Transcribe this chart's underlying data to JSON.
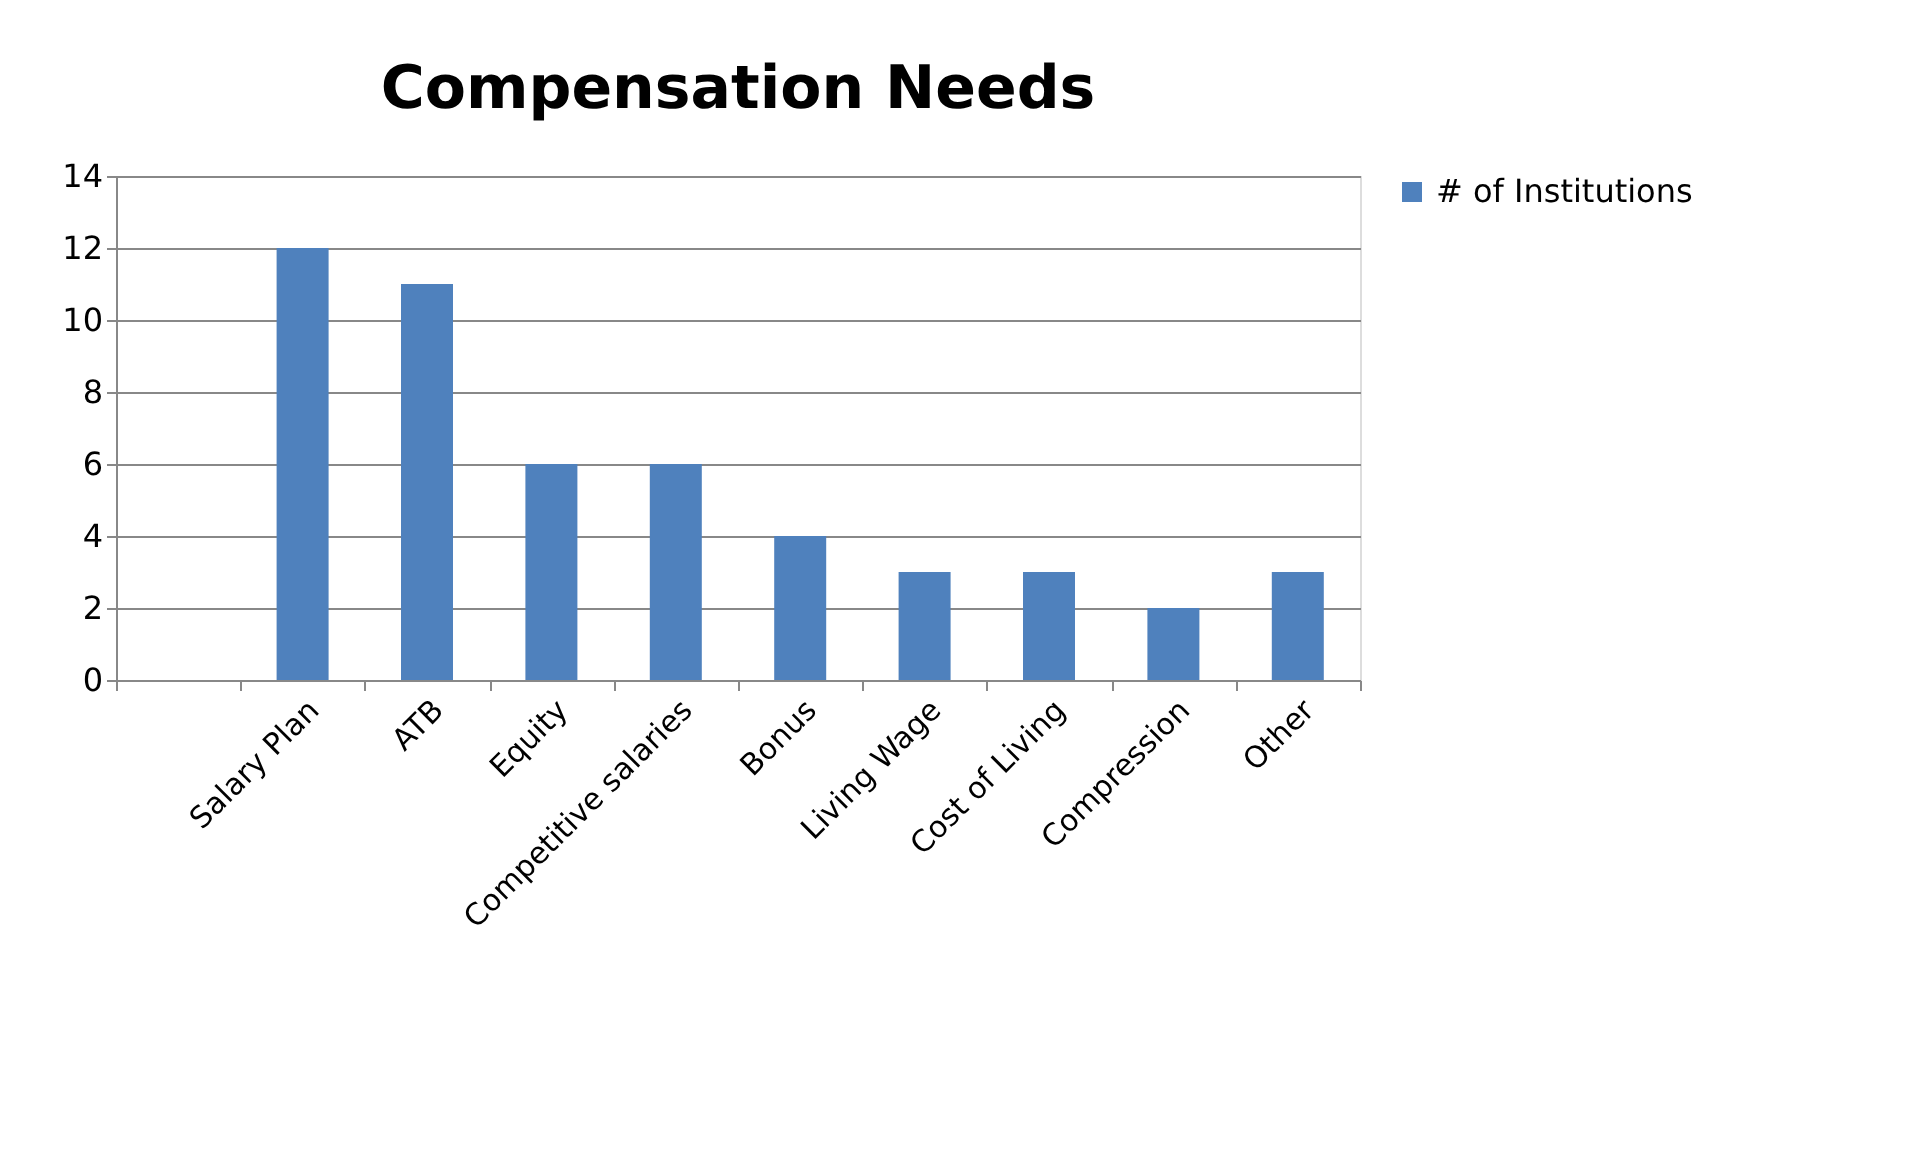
{
  "chart_data": {
    "type": "bar",
    "title": "Compensation Needs",
    "categories": [
      null,
      "Salary Plan",
      "ATB",
      "Equity",
      "Competitive salaries",
      "Bonus",
      "Living Wage",
      "Cost of Living",
      "Compression",
      "Other"
    ],
    "series": [
      {
        "name": "# of Institutions",
        "color": "#4f81bd",
        "values": [
          null,
          12,
          11,
          6,
          6,
          4,
          3,
          3,
          2,
          3
        ]
      }
    ],
    "ylim": [
      0,
      14
    ],
    "yticks": [
      0,
      2,
      4,
      6,
      8,
      10,
      12,
      14
    ],
    "grid": "y",
    "legend": "right"
  }
}
